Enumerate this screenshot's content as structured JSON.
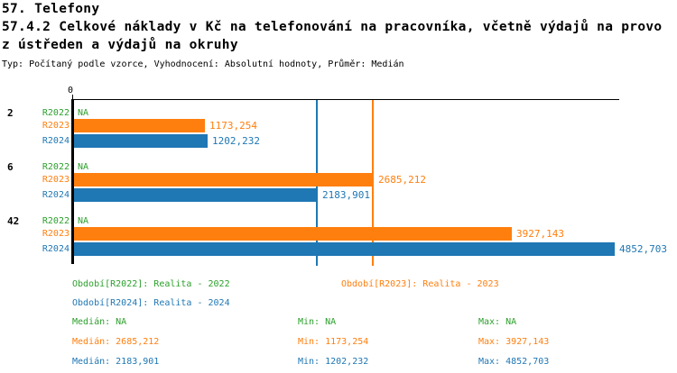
{
  "title": {
    "line1": "57. Telefony",
    "line2": "57.4.2 Celkové náklady v Kč na telefonování na pracovníka, včetně výdajů na provo",
    "line3": "z ústředen a výdajů na okruhy",
    "subtitle": "Typ: Počítaný podle vzorce, Vyhodnocení: Absolutní hodnoty, Průměr: Medián"
  },
  "colors": {
    "green": "#2ca02c",
    "orange": "#ff7f0e",
    "blue": "#1f77b4",
    "axis": "#000000"
  },
  "chart_data": {
    "type": "bar",
    "orientation": "horizontal",
    "title": "57.4.2 Celkové náklady v Kč na telefonování na pracovníka, včetně výdajů na provoz ústředen a výdajů na okruhy",
    "xlabel": "",
    "ylabel": "",
    "xlim": [
      0,
      4900
    ],
    "grid": false,
    "x_axis_zero_label": "0",
    "categories": [
      "2",
      "6",
      "42"
    ],
    "series": [
      {
        "name": "R2022",
        "color": "#2ca02c",
        "values": [
          null,
          null,
          null
        ],
        "labels": [
          "NA",
          "NA",
          "NA"
        ]
      },
      {
        "name": "R2023",
        "color": "#ff7f0e",
        "values": [
          1173.254,
          2685.212,
          3927.143
        ],
        "labels": [
          "1173,254",
          "2685,212",
          "3927,143"
        ]
      },
      {
        "name": "R2024",
        "color": "#1f77b4",
        "values": [
          1202.232,
          2183.901,
          4852.703
        ],
        "labels": [
          "1202,232",
          "2183,901",
          "4852,703"
        ]
      }
    ],
    "reference_lines": [
      {
        "name": "median-r2023",
        "value": 2685.212,
        "color": "#ff7f0e"
      },
      {
        "name": "median-r2024",
        "value": 2183.901,
        "color": "#1f77b4"
      }
    ]
  },
  "legend": {
    "row1": [
      {
        "text": "Období[R2022]: Realita - 2022",
        "color": "#2ca02c"
      },
      {
        "text": "Období[R2023]: Realita - 2023",
        "color": "#ff7f0e"
      }
    ],
    "row2": [
      {
        "text": "Období[R2024]: Realita - 2024",
        "color": "#1f77b4"
      }
    ]
  },
  "stats": {
    "rows": [
      {
        "color": "#2ca02c",
        "median": "Medián: NA",
        "min": "Min: NA",
        "max": "Max: NA"
      },
      {
        "color": "#ff7f0e",
        "median": "Medián: 2685,212",
        "min": "Min: 1173,254",
        "max": "Max: 3927,143"
      },
      {
        "color": "#1f77b4",
        "median": "Medián: 2183,901",
        "min": "Min: 1202,232",
        "max": "Max: 4852,703"
      }
    ]
  }
}
